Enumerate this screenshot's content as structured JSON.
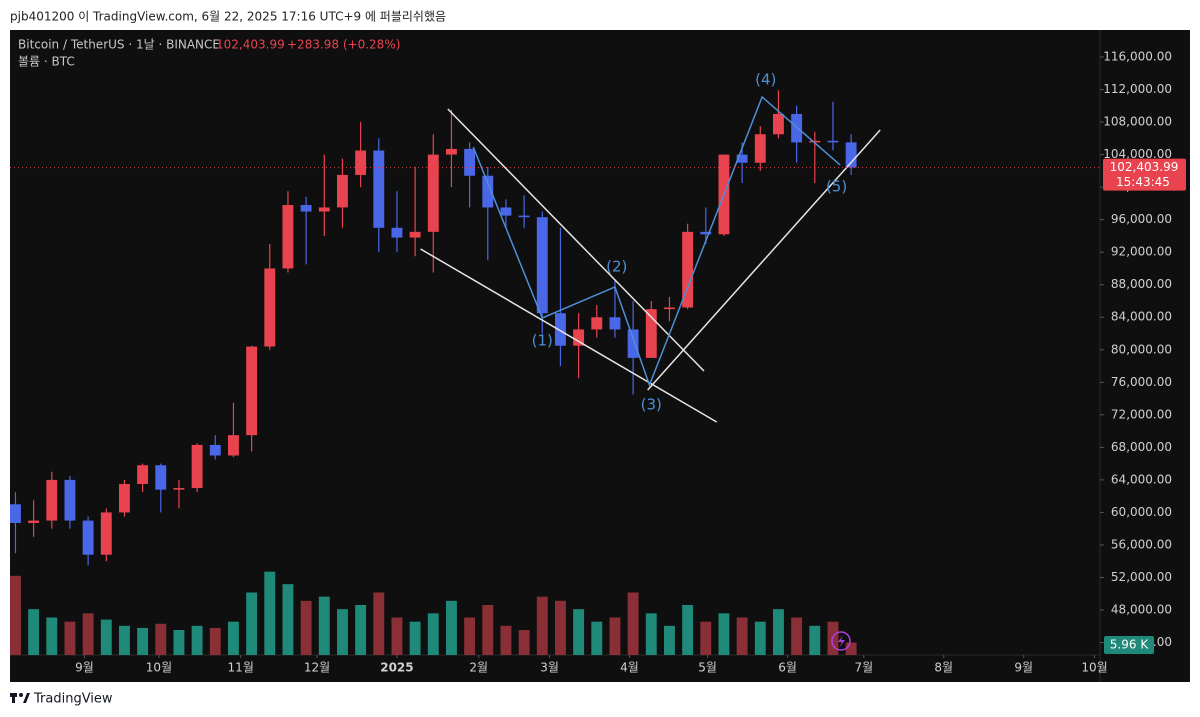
{
  "header": {
    "byline": "pjb401200 이 TradingView.com, 6월 22, 2025 17:16 UTC+9 에 퍼블리쉬했음"
  },
  "footer": {
    "brand": "TradingView"
  },
  "chart_data": {
    "type": "candlestick",
    "symbol": "Bitcoin / TetherUS · 1날 · BINANCE",
    "price": "102,403.99",
    "change": "+283.98 (+0.28%)",
    "volume_title": "볼륨 · BTC",
    "countdown": "15:43:45",
    "up_color": "#e8434f",
    "down_color": "#4a67e8",
    "volume_up_color": "#1f8a7a",
    "volume_down_color": "#8a2f35",
    "wave_color": "#4d8fd6",
    "line_color": "#e6e6e6",
    "xlim": [
      -0.3,
      59.7
    ],
    "ylim": [
      42470,
      119320
    ],
    "vlim": [
      0,
      60
    ],
    "xticks": [
      {
        "value": 3.8,
        "label": "9월"
      },
      {
        "value": 7.9,
        "label": "10월"
      },
      {
        "value": 12.4,
        "label": "11월"
      },
      {
        "value": 16.6,
        "label": "12월"
      },
      {
        "value": 21.0,
        "label": "2025"
      },
      {
        "value": 25.5,
        "label": "2월"
      },
      {
        "value": 29.4,
        "label": "3월"
      },
      {
        "value": 33.8,
        "label": "4월"
      },
      {
        "value": 38.1,
        "label": "5월"
      },
      {
        "value": 42.5,
        "label": "6월"
      },
      {
        "value": 46.7,
        "label": "7월"
      },
      {
        "value": 51.1,
        "label": "8월"
      },
      {
        "value": 55.5,
        "label": "9월"
      },
      {
        "value": 59.4,
        "label": "10월"
      }
    ],
    "yticks": [
      {
        "value": 44000,
        "label": "44,000.00"
      },
      {
        "value": 48000,
        "label": "48,000.00"
      },
      {
        "value": 52000,
        "label": "52,000.00"
      },
      {
        "value": 56000,
        "label": "56,000.00"
      },
      {
        "value": 60000,
        "label": "60,000.00"
      },
      {
        "value": 64000,
        "label": "64,000.00"
      },
      {
        "value": 68000,
        "label": "68,000.00"
      },
      {
        "value": 72000,
        "label": "72,000.00"
      },
      {
        "value": 76000,
        "label": "76,000.00"
      },
      {
        "value": 80000,
        "label": "80,000.00"
      },
      {
        "value": 84000,
        "label": "84,000.00"
      },
      {
        "value": 88000,
        "label": "88,000.00"
      },
      {
        "value": 92000,
        "label": "92,000.00"
      },
      {
        "value": 96000,
        "label": "96,000.00"
      },
      {
        "value": 100000,
        "label": "100,000.00"
      },
      {
        "value": 104000,
        "label": "104,000.00"
      },
      {
        "value": 108000,
        "label": "108,000.00"
      },
      {
        "value": 112000,
        "label": "112,000.00"
      },
      {
        "value": 116000,
        "label": "116,000.00"
      }
    ],
    "open": [
      61000,
      58700,
      59000,
      64000,
      59000,
      54800,
      60000,
      63500,
      65800,
      62800,
      63000,
      68300,
      67000,
      69500,
      80400,
      90000,
      97800,
      97000,
      97500,
      101500,
      104500,
      95000,
      93800,
      94500,
      104000,
      104700,
      101400,
      97500,
      96500,
      96300,
      84500,
      80500,
      82500,
      84000,
      82500,
      79000,
      85000,
      85200,
      94500,
      94200,
      104000,
      103000,
      106500,
      109000,
      105500,
      105700,
      105500
    ],
    "high": [
      62500,
      61500,
      65000,
      64500,
      59500,
      60500,
      64000,
      66000,
      66000,
      64000,
      68500,
      69500,
      73500,
      80500,
      93000,
      99500,
      98800,
      104000,
      103500,
      108000,
      106000,
      99500,
      102500,
      106500,
      109500,
      105500,
      102500,
      98500,
      99000,
      97000,
      95000,
      84500,
      85500,
      88500,
      86000,
      86000,
      86500,
      95500,
      97500,
      104000,
      105500,
      107500,
      111900,
      110000,
      106800,
      110500,
      106500
    ],
    "low": [
      55000,
      57000,
      58000,
      58000,
      53500,
      54000,
      59500,
      62500,
      60000,
      60500,
      62500,
      66500,
      66800,
      67500,
      80000,
      89500,
      90500,
      94000,
      95000,
      100000,
      92000,
      92000,
      91500,
      89500,
      100000,
      97500,
      91000,
      95000,
      95000,
      82000,
      78000,
      76500,
      81500,
      81500,
      74500,
      79000,
      83500,
      85000,
      93000,
      94000,
      100500,
      102000,
      106000,
      103000,
      100500,
      104500,
      101500
    ],
    "close": [
      58700,
      59000,
      64000,
      59000,
      54800,
      60000,
      63500,
      65800,
      62800,
      63000,
      68300,
      67000,
      69500,
      80400,
      90000,
      97800,
      97000,
      97500,
      101500,
      104500,
      95000,
      93800,
      94500,
      104000,
      104700,
      101400,
      97500,
      96500,
      96300,
      84500,
      80500,
      82500,
      84000,
      82500,
      79000,
      85000,
      85200,
      94500,
      94200,
      104000,
      103000,
      106500,
      109000,
      105500,
      105700,
      105500,
      102403.99
    ],
    "volume": [
      38,
      22,
      18,
      16,
      20,
      17,
      14,
      13,
      15,
      12,
      14,
      13,
      16,
      30,
      40,
      34,
      26,
      28,
      22,
      24,
      30,
      18,
      16,
      20,
      26,
      18,
      24,
      14,
      12,
      28,
      26,
      22,
      16,
      18,
      30,
      20,
      14,
      24,
      16,
      20,
      18,
      16,
      22,
      18,
      14,
      16,
      5.96
    ],
    "volume_value_labels": {
      "46": "5.96 K"
    },
    "trendlines": [
      {
        "points": [
          [
            23.8,
            109606
          ],
          [
            37.9,
            77390
          ]
        ],
        "color": "#e6e6e6"
      },
      {
        "points": [
          [
            22.3,
            92390
          ],
          [
            38.6,
            71120
          ]
        ],
        "color": "#e6e6e6"
      },
      {
        "points": [
          [
            34.8,
            75050
          ],
          [
            47.6,
            107020
          ]
        ],
        "color": "#e6e6e6"
      },
      {
        "points": [
          [
            25.2,
            104930
          ],
          [
            29.0,
            83910
          ],
          [
            33.0,
            87720
          ],
          [
            34.9,
            75670
          ],
          [
            41.1,
            111080
          ],
          [
            45.4,
            102720
          ]
        ],
        "color": "#4d8fd6"
      }
    ],
    "annotations": [
      {
        "text": "(1)",
        "x": 29.0,
        "y": 81080
      },
      {
        "text": "(2)",
        "x": 33.1,
        "y": 90180
      },
      {
        "text": "(3)",
        "x": 35.0,
        "y": 73210
      },
      {
        "text": "(4)",
        "x": 41.3,
        "y": 113170
      },
      {
        "text": "(5)",
        "x": 45.2,
        "y": 100010
      }
    ]
  }
}
